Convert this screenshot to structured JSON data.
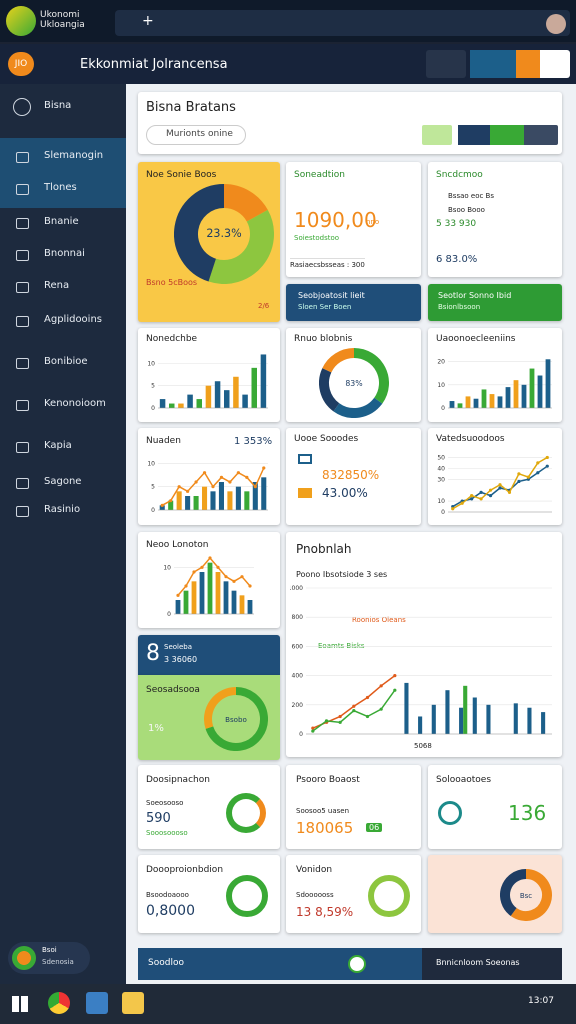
{
  "browser": {
    "tab_title": "Ukonomi Ukloangia",
    "new_tab": "+"
  },
  "address": {
    "badge": "JIO",
    "title": "Ekkonmiat Jolrancensa"
  },
  "sidebar": {
    "items": [
      "Bisna",
      "Slemanogin",
      "Tlones",
      "Bnanie",
      "Bnonnai",
      "Rena",
      "Agplidooins",
      "Bonibioe",
      "Kenonoioom",
      "Kapia",
      "Sagone",
      "Rasinio"
    ],
    "user": {
      "name": "Bsoi",
      "sub": "Sdenosia"
    }
  },
  "header": {
    "title": "Bisna Bratans",
    "search": "Murionts onine"
  },
  "cards": {
    "yellow": {
      "title": "Noe Sonie Boos",
      "note": "Bsno 5cBoos",
      "tag": "2/6",
      "chart": {
        "type": "donut",
        "center": "23.3%",
        "values": [
          17,
          38,
          45
        ],
        "colors": [
          "#f08a1c",
          "#8dc63f",
          "#1f3d63"
        ]
      }
    },
    "sales": {
      "title": "Soneadtion",
      "value": "1090,00",
      "unit": "nno",
      "sub": "Soiestodstoo",
      "foot": "Rasiaecsbsseas : 300"
    },
    "list": {
      "title": "Sncdcmoo",
      "items": [
        "Bssao eoc Bs",
        "Bsoo Booo",
        "5 33 930"
      ],
      "value": "6 83.0%"
    },
    "blue_banner": {
      "title": "Seobjoatosit lieit",
      "sub": "Sloen Ser Boen"
    },
    "green_banner": {
      "title": "Seotlor Sonno Ibid",
      "sub": "Bsionlbsoon"
    },
    "bars1": {
      "title": "Nonedchbe",
      "chart": {
        "type": "bar",
        "ylim": [
          0,
          13
        ],
        "yticks": [
          0,
          5,
          10
        ],
        "series": [
          {
            "type": "bar",
            "color": "#1c5f8a",
            "values": [
              2,
              1,
              1,
              3,
              2,
              5,
              6,
              4,
              7,
              3,
              9,
              12
            ]
          }
        ]
      }
    },
    "donut2": {
      "title": "Rnuo blobnis",
      "chart": {
        "type": "donut",
        "center": "83%",
        "values": [
          35,
          25,
          22,
          18
        ],
        "colors": [
          "#39a935",
          "#1c5f8a",
          "#1f3d63",
          "#f08a1c"
        ]
      }
    },
    "bars2": {
      "title": "Uaoonoecleeniins",
      "chart": {
        "type": "bar",
        "ylim": [
          0,
          25
        ],
        "yticks": [
          0,
          10,
          20
        ],
        "series": [
          {
            "type": "bar",
            "color": "#1c5f8a",
            "values": [
              3,
              2,
              5,
              4,
              8,
              6,
              5,
              9,
              12,
              10,
              17,
              14,
              21
            ]
          }
        ]
      }
    },
    "combo1": {
      "title": "Nuaden",
      "stat": "1 353%",
      "chart": {
        "type": "bar",
        "ylim": [
          0,
          12
        ],
        "yticks": [
          0,
          5,
          10
        ],
        "series": [
          {
            "type": "bar",
            "color": "#1c5f8a",
            "values": [
              1,
              2,
              4,
              3,
              3,
              5,
              4,
              6,
              4,
              5,
              4,
              6,
              7
            ]
          },
          {
            "type": "line",
            "color": "#f08a1c",
            "values": [
              1,
              2,
              5,
              4,
              6,
              8,
              5,
              7,
              6,
              8,
              7,
              5,
              9
            ]
          }
        ]
      }
    },
    "rows": {
      "title": "Uooe Sooodes",
      "items": [
        "832850%",
        "43.00%"
      ]
    },
    "line1": {
      "title": "Vatedsuoodoos",
      "chart": {
        "type": "bar",
        "ylim": [
          0,
          55
        ],
        "yticks": [
          0,
          10,
          30,
          40,
          50
        ],
        "series": [
          {
            "type": "line",
            "color": "#1c5f8a",
            "values": [
              5,
              10,
              12,
              18,
              15,
              22,
              20,
              28,
              30,
              36,
              42
            ]
          },
          {
            "type": "line",
            "color": "#e0a80c",
            "values": [
              3,
              8,
              15,
              12,
              20,
              25,
              18,
              35,
              32,
              45,
              50
            ]
          }
        ]
      }
    },
    "bars3": {
      "title": "Neoo Lonoton",
      "chart": {
        "type": "bar",
        "ylim": [
          0,
          12
        ],
        "yticks": [
          0,
          10
        ],
        "series": [
          {
            "type": "bar",
            "color": "#1c5f8a",
            "values": [
              3,
              5,
              7,
              9,
              11,
              9,
              7,
              5,
              4,
              3
            ]
          },
          {
            "type": "line",
            "color": "#f08a1c",
            "values": [
              4,
              6,
              9,
              10,
              12,
              10,
              8,
              7,
              8,
              6
            ]
          }
        ]
      }
    },
    "big": {
      "title": "Pnobnlah",
      "subtitle": "Poono Ibsotsiode 3 ses",
      "legend": [
        "Roonios Oleans",
        "Eoamts Bisks"
      ],
      "foot": "5068",
      "chart": {
        "type": "bar",
        "ylim": [
          0,
          1000
        ],
        "yticks": [
          0,
          200,
          400,
          600,
          800,
          1000
        ],
        "series": [
          {
            "type": "bar",
            "color": "#1c5f8a",
            "values": [
              null,
              null,
              null,
              null,
              null,
              null,
              null,
              350,
              120,
              200,
              300,
              180,
              250,
              200,
              null,
              210,
              180,
              150
            ]
          },
          {
            "type": "bar",
            "color": "#39a935",
            "values": [
              null,
              null,
              null,
              null,
              null,
              null,
              null,
              null,
              null,
              null,
              null,
              330,
              null,
              null,
              null,
              null,
              null,
              null
            ]
          },
          {
            "type": "line",
            "color": "#e05a1a",
            "values": [
              40,
              80,
              120,
              190,
              250,
              330,
              400,
              null,
              null,
              null,
              null,
              null,
              null,
              null,
              null,
              null,
              null,
              null
            ]
          },
          {
            "type": "line",
            "color": "#39a935",
            "values": [
              20,
              90,
              80,
              160,
              120,
              170,
              300,
              null,
              null,
              null,
              null,
              null,
              null,
              null,
              null,
              null,
              null,
              null
            ]
          }
        ]
      }
    },
    "mini_blue": {
      "big": "8",
      "title": "Seoleba",
      "value": "3 36060"
    },
    "green": {
      "title": "Seosadsooa",
      "pct": "1%",
      "chart": {
        "type": "donut",
        "center": "Bsobo",
        "values": [
          70,
          30
        ],
        "colors": [
          "#39a935",
          "#f0a01c"
        ]
      }
    },
    "k1": {
      "title": "Doosipnachon",
      "sub": "Soeosooso",
      "value": "590",
      "foot": "Sooosoooso"
    },
    "k2": {
      "title": "Psooro Boaost",
      "sub": "Soosoo5 uasen",
      "value": "180065",
      "badge": "06"
    },
    "k3": {
      "title": "Solooaotoes",
      "value": "136"
    },
    "k4": {
      "title": "Doooproionbdion",
      "sub": "Bsoodoaooo",
      "value": "0,8000"
    },
    "k5": {
      "title": "Vonidon",
      "sub": "Sdoooooss",
      "value": "13 8,59%"
    },
    "peach": {
      "chart": {
        "type": "donut",
        "center": "Bsc",
        "values": [
          60,
          40
        ],
        "colors": [
          "#f08a1c",
          "#1f3d63"
        ]
      }
    }
  },
  "footer": {
    "left": "Soodloo",
    "right": "Bnnicnloom Soeonas"
  },
  "taskbar": {
    "time": "13:07"
  }
}
